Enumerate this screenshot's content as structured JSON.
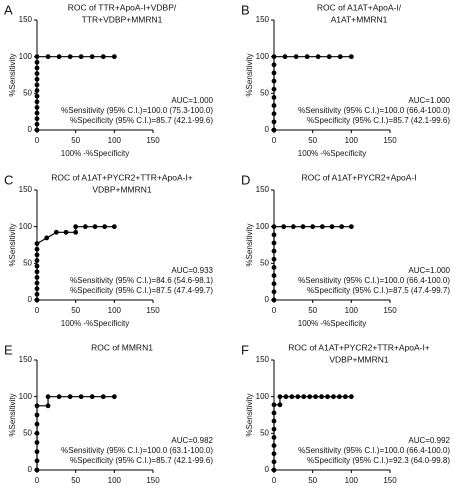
{
  "chart_data": [
    {
      "type": "line",
      "panel_label": "A",
      "title": [
        "ROC of TTR+ApoA-I+VDBP/",
        "TTR+VDBP+MMRN1"
      ],
      "xlabel": "100% -%Specificity",
      "ylabel": "%Sensitivity",
      "x": [
        0,
        0,
        0,
        0,
        0,
        0,
        0,
        0,
        0,
        0,
        0,
        0,
        0,
        0,
        14.3,
        28.6,
        42.9,
        57.1,
        71.4,
        85.7,
        100
      ],
      "y": [
        0,
        7.7,
        15.4,
        23.1,
        30.8,
        38.5,
        46.2,
        53.8,
        61.5,
        69.2,
        76.9,
        84.6,
        92.3,
        100,
        100,
        100,
        100,
        100,
        100,
        100,
        100
      ],
      "annotations": [
        "AUC=1.000",
        "%Sensitivity (95% C.I.)=100.0 (75.3-100.0)",
        "%Specificity (95% C.I.)=85.7 (42.1-99.6)"
      ],
      "xlim": [
        0,
        150
      ],
      "ylim": [
        0,
        150
      ],
      "xticks": [
        0,
        50,
        100,
        150
      ],
      "yticks": [
        0,
        50,
        100,
        150
      ],
      "color": "#000000"
    },
    {
      "type": "line",
      "panel_label": "B",
      "title": [
        "ROC of A1AT+ApoA-I/",
        "A1AT+MMRN1"
      ],
      "xlabel": "100% -%Specificity",
      "ylabel": "%Sensitivity",
      "x": [
        0,
        0,
        0,
        0,
        0,
        0,
        0,
        0,
        0,
        0,
        14.3,
        28.6,
        42.9,
        57.1,
        71.4,
        85.7,
        100
      ],
      "y": [
        0,
        11.1,
        22.2,
        33.3,
        44.4,
        55.6,
        66.7,
        77.8,
        88.9,
        100,
        100,
        100,
        100,
        100,
        100,
        100,
        100
      ],
      "annotations": [
        "AUC=1.000",
        "%Sensitivity (95% C.I.)=100.0 (66.4-100.0)",
        "%Specificity (95% C.I.)=85.7 (42.1-99.6)"
      ],
      "xlim": [
        0,
        150
      ],
      "ylim": [
        0,
        150
      ],
      "xticks": [
        0,
        50,
        100,
        150
      ],
      "yticks": [
        0,
        50,
        100,
        150
      ],
      "color": "#000000"
    },
    {
      "type": "line",
      "panel_label": "C",
      "title": [
        "ROC of A1AT+PYCR2+TTR+ApoA-I+",
        "VDBP+MMRN1"
      ],
      "xlabel": "100% -%Specificity",
      "ylabel": "%Sensitivity",
      "x": [
        0,
        0,
        0,
        0,
        0,
        0,
        0,
        0,
        0,
        0,
        0,
        12.5,
        25,
        37.5,
        50,
        50,
        62.5,
        75,
        87.5,
        100
      ],
      "y": [
        0,
        7.7,
        15.4,
        23.1,
        30.8,
        38.5,
        46.2,
        53.8,
        61.5,
        69.2,
        76.9,
        84.6,
        92.3,
        92.3,
        92.3,
        100,
        100,
        100,
        100,
        100
      ],
      "annotations": [
        "AUC=0.933",
        "%Sensitivity (95% C.I.)=84.6 (54.6-98.1)",
        "%Specificity (95% C.I.)=87.5 (47.4-99.7)"
      ],
      "xlim": [
        0,
        150
      ],
      "ylim": [
        0,
        150
      ],
      "xticks": [
        0,
        50,
        100,
        150
      ],
      "yticks": [
        0,
        50,
        100,
        150
      ],
      "color": "#000000"
    },
    {
      "type": "line",
      "panel_label": "D",
      "title": [
        "ROC of A1AT+PYCR2+ApoA-I"
      ],
      "xlabel": "100% -%Specificity",
      "ylabel": "%Sensitivity",
      "x": [
        0,
        0,
        0,
        0,
        0,
        0,
        0,
        0,
        0,
        0,
        12.5,
        25,
        37.5,
        50,
        62.5,
        75,
        87.5,
        100
      ],
      "y": [
        0,
        11.1,
        22.2,
        33.3,
        44.4,
        55.6,
        66.7,
        77.8,
        88.9,
        100,
        100,
        100,
        100,
        100,
        100,
        100,
        100,
        100
      ],
      "annotations": [
        "AUC=1.000",
        "%Sensitivity (95% C.I.)=100.0 (66.4-100.0)",
        "%Specificity (95% C.I.)=87.5 (47.4-99.7)"
      ],
      "xlim": [
        0,
        150
      ],
      "ylim": [
        0,
        150
      ],
      "xticks": [
        0,
        50,
        100,
        150
      ],
      "yticks": [
        0,
        50,
        100,
        150
      ],
      "color": "#000000"
    },
    {
      "type": "line",
      "panel_label": "E",
      "title": [
        "ROC of MMRN1"
      ],
      "ylabel": "%Sensitivity",
      "x": [
        0,
        0,
        0,
        0,
        0,
        0,
        0,
        0,
        14.3,
        14.3,
        28.6,
        42.9,
        57.1,
        71.4,
        85.7,
        100
      ],
      "y": [
        0,
        12.5,
        25,
        37.5,
        50,
        62.5,
        75,
        87.5,
        87.5,
        100,
        100,
        100,
        100,
        100,
        100,
        100
      ],
      "annotations": [
        "AUC=0.982",
        "%Sensitivity (95% C.I.)=100.0 (63.1-100.0)",
        "%Specificity (95% C.I.)=85.7 (42.1-99.6)"
      ],
      "xlim": [
        0,
        150
      ],
      "ylim": [
        0,
        150
      ],
      "xticks": [
        0,
        50,
        100,
        150
      ],
      "yticks": [
        0,
        50,
        100,
        150
      ],
      "color": "#000000"
    },
    {
      "type": "line",
      "panel_label": "F",
      "title": [
        "ROC of A1AT+PYCR2+TTR+ApoA-I+",
        "VDBP+MMRN1"
      ],
      "ylabel": "%Sensitivity",
      "x": [
        0,
        0,
        0,
        0,
        0,
        0,
        0,
        0,
        0,
        7.7,
        7.7,
        15.4,
        23.1,
        30.8,
        38.5,
        46.2,
        53.8,
        61.5,
        69.2,
        76.9,
        84.6,
        92.3,
        100
      ],
      "y": [
        0,
        11.1,
        22.2,
        33.3,
        44.4,
        55.6,
        66.7,
        77.8,
        88.9,
        88.9,
        100,
        100,
        100,
        100,
        100,
        100,
        100,
        100,
        100,
        100,
        100,
        100,
        100
      ],
      "annotations": [
        "AUC=0.992",
        "%Sensitivity (95% C.I.)=100.0 (66.4-100.0)",
        "%Specificity (95% C.I.)=92.3 (64.0-99.8)"
      ],
      "xlim": [
        0,
        150
      ],
      "ylim": [
        0,
        150
      ],
      "xticks": [
        0,
        50,
        100,
        150
      ],
      "yticks": [
        0,
        50,
        100,
        150
      ],
      "color": "#000000"
    }
  ]
}
